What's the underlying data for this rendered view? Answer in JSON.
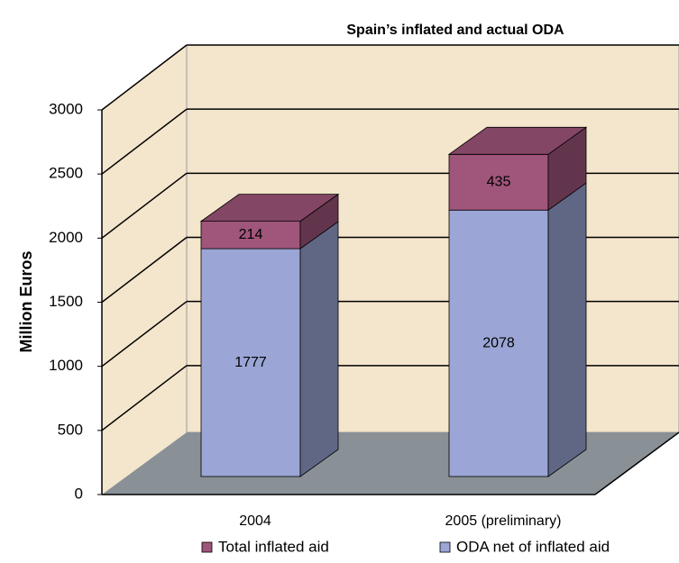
{
  "chart_data": {
    "type": "bar3d_stacked",
    "title": "Spain’s  inflated and actual ODA",
    "y_label": "Million Euros",
    "categories": [
      "2004",
      "2005    (preliminary)"
    ],
    "series": [
      {
        "name": "ODA net of inflated aid",
        "color": "#9ba6d6",
        "values": [
          1777,
          2078
        ]
      },
      {
        "name": "Total inflated aid",
        "color": "#a0557a",
        "values": [
          214,
          435
        ]
      }
    ],
    "ylim": [
      0,
      3000
    ],
    "yticks": [
      0,
      500,
      1000,
      1500,
      2000,
      2500,
      3000
    ],
    "grid": true
  }
}
